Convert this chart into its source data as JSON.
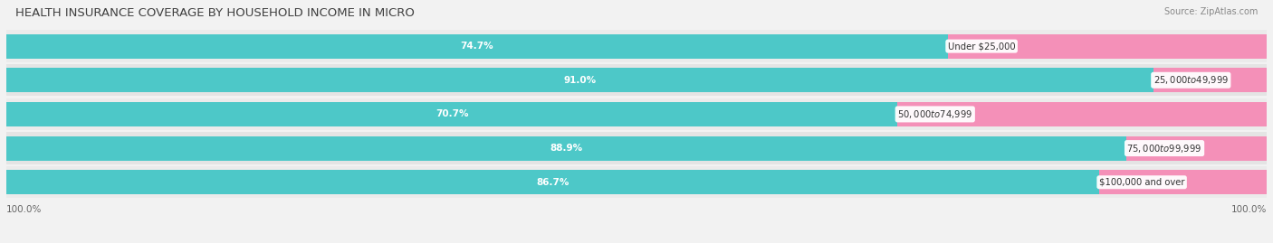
{
  "title": "HEALTH INSURANCE COVERAGE BY HOUSEHOLD INCOME IN MICRO",
  "source": "Source: ZipAtlas.com",
  "categories": [
    "Under $25,000",
    "$25,000 to $49,999",
    "$50,000 to $74,999",
    "$75,000 to $99,999",
    "$100,000 and over"
  ],
  "with_coverage": [
    74.7,
    91.0,
    70.7,
    88.9,
    86.7
  ],
  "without_coverage": [
    25.3,
    9.0,
    29.3,
    11.1,
    13.3
  ],
  "color_with": "#4dc8c8",
  "color_without": "#f490b8",
  "bg_row_odd": "#ececec",
  "bg_row_even": "#e0e0e0",
  "bg_color": "#f2f2f2",
  "title_fontsize": 9.5,
  "label_fontsize": 7.5,
  "tick_label_fontsize": 7.5,
  "legend_fontsize": 7.5,
  "source_fontsize": 7,
  "bar_height": 0.72
}
